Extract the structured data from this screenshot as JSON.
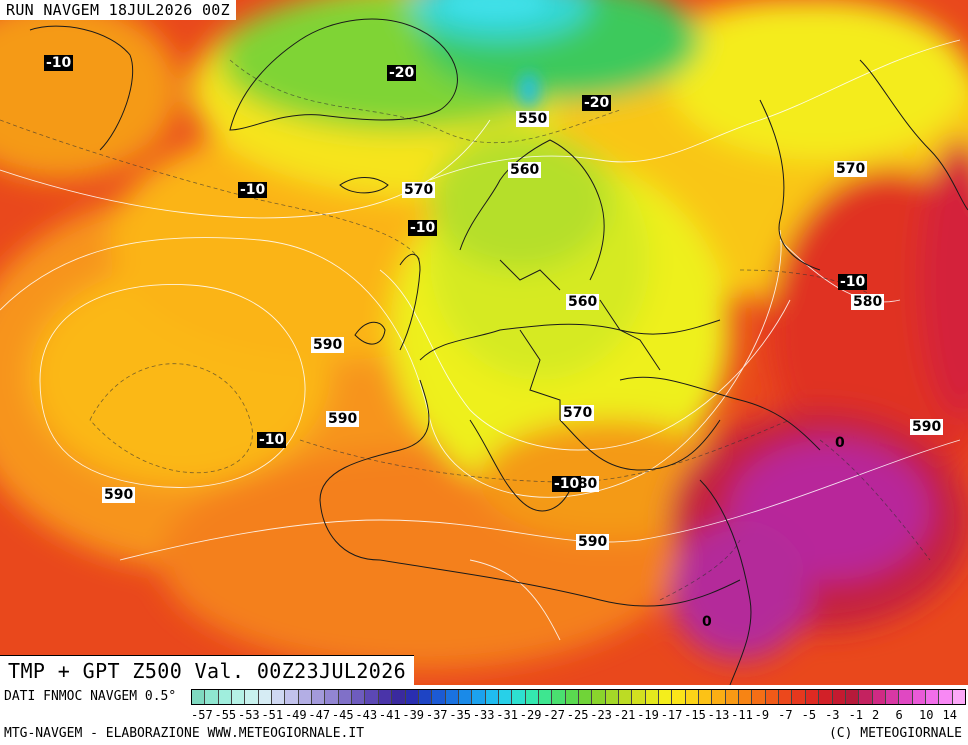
{
  "header": {
    "run_title": "RUN NAVGEM 18JUL2026 00Z"
  },
  "map": {
    "valid_title": "TMP + GPT Z500 Val. 00Z23JUL2026",
    "gpt_labels": [
      "550",
      "560",
      "570",
      "570",
      "560",
      "570",
      "580",
      "590",
      "590",
      "590",
      "580",
      "590",
      "590"
    ],
    "tmp_labels": [
      "-10",
      "-20",
      "-20",
      "-10",
      "-10",
      "-10",
      "-10",
      "-10",
      "0",
      "0"
    ]
  },
  "legend": {
    "data_source": "DATI FNMOC NAVGEM 0.5°",
    "colors": [
      "#7fd9c0",
      "#8fe6d0",
      "#a0eedd",
      "#b5f2e6",
      "#c8f2ee",
      "#d6ecf4",
      "#cfd8f2",
      "#c2c2ec",
      "#b3aee4",
      "#a39adb",
      "#9285d2",
      "#8070c8",
      "#6e5cbe",
      "#5c48b4",
      "#4a34a9",
      "#3a2a9e",
      "#2a2eb0",
      "#1e44c4",
      "#1c5ad4",
      "#1a72e0",
      "#1a8ae8",
      "#1ca2ee",
      "#20bcf0",
      "#28d0e8",
      "#2ee0d0",
      "#34e8b0",
      "#3ee690",
      "#4ae070",
      "#5ada50",
      "#70d438",
      "#8ad42c",
      "#a4d828",
      "#bcdc24",
      "#d2e020",
      "#e4e81e",
      "#f4ee1c",
      "#fbe41a",
      "#fcd418",
      "#fcc216",
      "#fbae14",
      "#f99a14",
      "#f78414",
      "#f46e16",
      "#f05a18",
      "#ec481c",
      "#e6381e",
      "#de2a22",
      "#d22028",
      "#c41a30",
      "#b61a3a",
      "#c42260",
      "#d02a84",
      "#d838a4",
      "#e048c2",
      "#ea5ad8",
      "#f26eea",
      "#f888f4",
      "#fca8f8"
    ],
    "ticks": [
      "-57",
      "-55",
      "-53",
      "-51",
      "-49",
      "-47",
      "-45",
      "-43",
      "-41",
      "-39",
      "-37",
      "-35",
      "-33",
      "-31",
      "-29",
      "-27",
      "-25",
      "-23",
      "-21",
      "-19",
      "-17",
      "-15",
      "-13",
      "-11",
      "-9",
      "-7",
      "-5",
      "-3",
      "-1",
      "2",
      "6",
      "10",
      "14"
    ]
  },
  "footer": {
    "left": "MTG-NAVGEM - ELABORAZIONE WWW.METEOGIORNALE.IT",
    "right": "(C) METEOGIORNALE"
  }
}
